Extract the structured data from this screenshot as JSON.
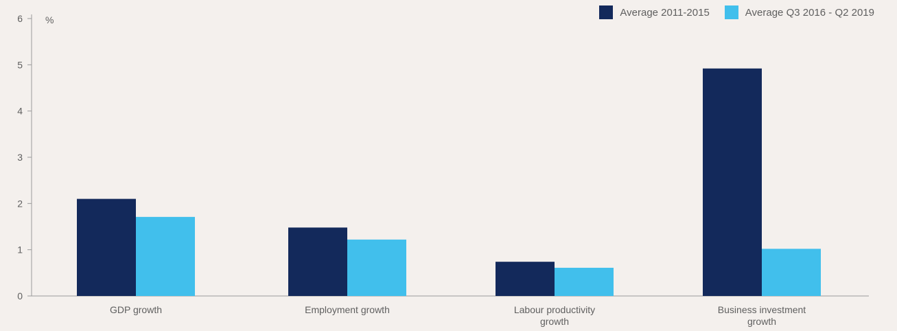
{
  "chart_data": {
    "type": "bar",
    "unit_label": "%",
    "categories": [
      [
        "GDP growth"
      ],
      [
        "Employment growth"
      ],
      [
        "Labour productivity",
        "growth"
      ],
      [
        "Business investment",
        "growth"
      ]
    ],
    "series": [
      {
        "name": "Average 2011-2015",
        "color": "#13295b",
        "values": [
          2.1,
          1.48,
          0.74,
          4.92
        ]
      },
      {
        "name": "Average Q3 2016 - Q2 2019",
        "color": "#41bfec",
        "values": [
          1.71,
          1.22,
          0.61,
          1.02
        ]
      }
    ],
    "ylim": [
      0,
      6
    ],
    "yticks": [
      "0",
      "1",
      "2",
      "3",
      "4",
      "5",
      "6"
    ],
    "grid": false,
    "legend_position": "top-right"
  }
}
